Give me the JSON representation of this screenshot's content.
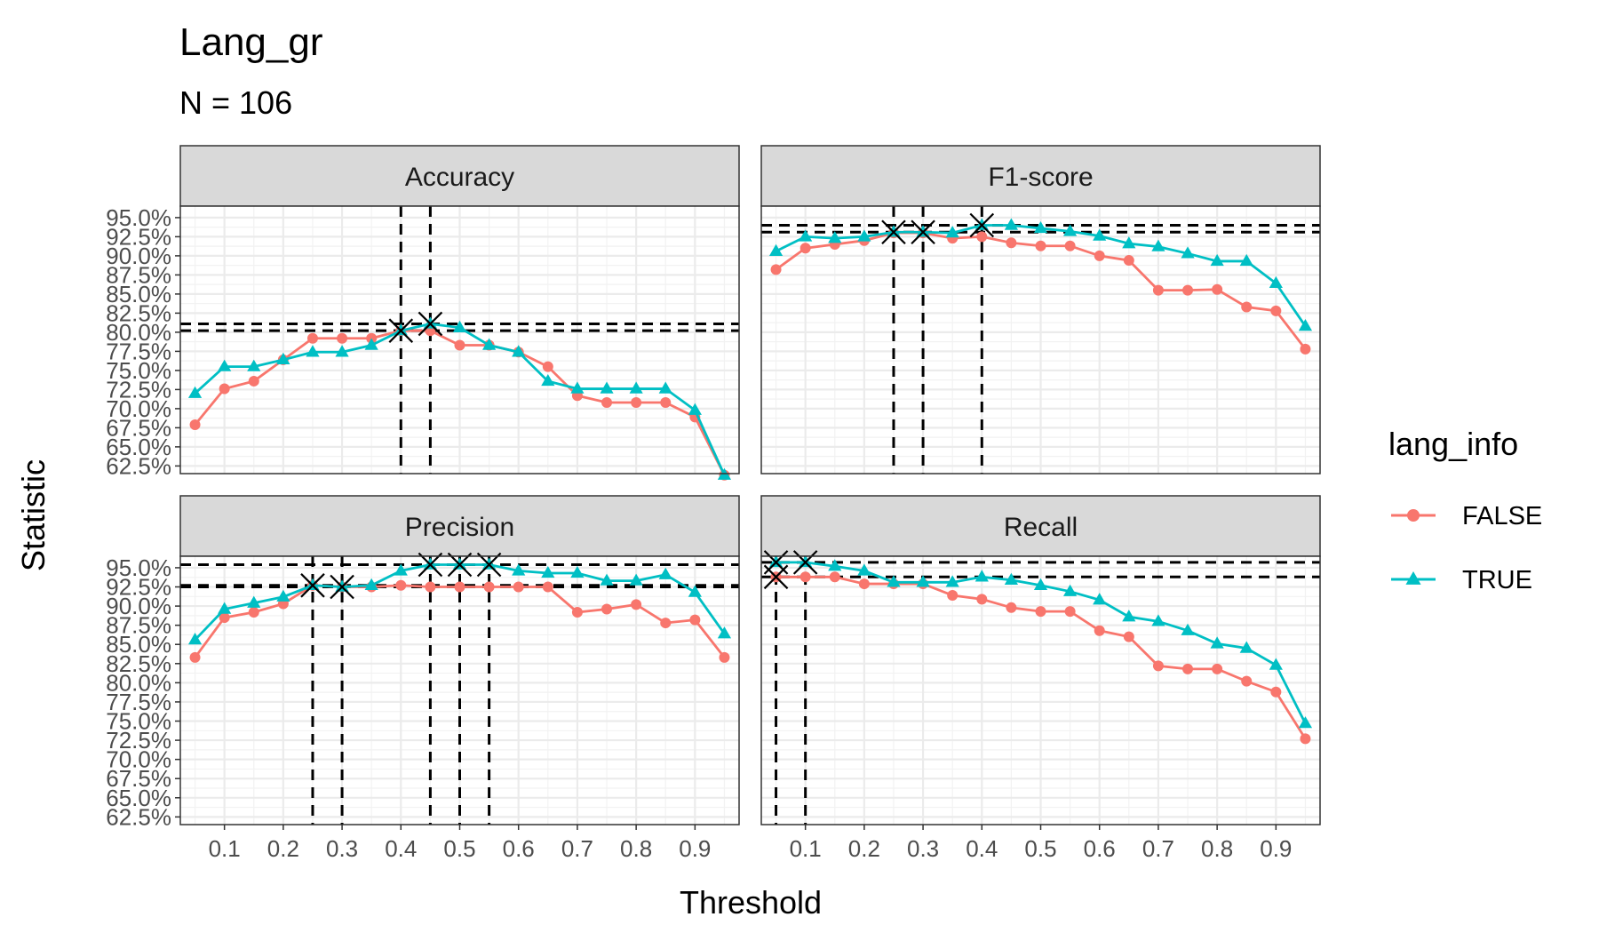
{
  "chart_data": {
    "type": "line",
    "title": "Lang_gr",
    "subtitle": "N = 106",
    "xlabel": "Threshold",
    "ylabel": "Statistic",
    "legend": {
      "title": "lang_info",
      "position": "right",
      "entries": [
        {
          "name": "FALSE",
          "color": "#F8766D",
          "shape": "circle"
        },
        {
          "name": "TRUE",
          "color": "#00BFC4",
          "shape": "triangle"
        }
      ]
    },
    "x": [
      0.05,
      0.1,
      0.15,
      0.2,
      0.25,
      0.3,
      0.35,
      0.4,
      0.45,
      0.5,
      0.55,
      0.6,
      0.65,
      0.7,
      0.75,
      0.8,
      0.85,
      0.9,
      0.95
    ],
    "x_ticks": [
      0.1,
      0.2,
      0.3,
      0.4,
      0.5,
      0.6,
      0.7,
      0.8,
      0.9
    ],
    "x_tick_labels": [
      "0.1",
      "0.2",
      "0.3",
      "0.4",
      "0.5",
      "0.6",
      "0.7",
      "0.8",
      "0.9"
    ],
    "xlim": [
      0.025,
      0.975
    ],
    "y_ticks": [
      62.5,
      65,
      67.5,
      70,
      72.5,
      75,
      77.5,
      80,
      82.5,
      85,
      87.5,
      90,
      92.5,
      95
    ],
    "y_tick_labels": [
      "62.5%",
      "65.0%",
      "67.5%",
      "70.0%",
      "72.5%",
      "75.0%",
      "77.5%",
      "80.0%",
      "82.5%",
      "85.0%",
      "87.5%",
      "90.0%",
      "92.5%",
      "95.0%"
    ],
    "grid": true,
    "panels": [
      {
        "name": "Accuracy",
        "ylim": [
          61.5,
          96.5
        ],
        "series": [
          {
            "name": "FALSE",
            "values": [
              67.9,
              72.6,
              73.6,
              76.4,
              79.2,
              79.2,
              79.2,
              80.2,
              80.2,
              78.3,
              78.3,
              77.4,
              75.5,
              71.7,
              70.8,
              70.8,
              70.8,
              68.9,
              61.3
            ]
          },
          {
            "name": "TRUE",
            "values": [
              72.0,
              75.5,
              75.5,
              76.4,
              77.4,
              77.4,
              78.3,
              80.2,
              81.1,
              80.6,
              78.3,
              77.4,
              73.6,
              72.6,
              72.6,
              72.6,
              72.6,
              69.8,
              61.3
            ]
          }
        ],
        "optimal": [
          {
            "x": 0.4,
            "y": 80.2
          },
          {
            "x": 0.45,
            "y": 81.1
          }
        ]
      },
      {
        "name": "F1-score",
        "ylim": [
          61.5,
          96.5
        ],
        "series": [
          {
            "name": "FALSE",
            "values": [
              88.2,
              91.0,
              91.5,
              92.0,
              93.0,
              93.0,
              92.3,
              92.5,
              91.7,
              91.3,
              91.3,
              90.0,
              89.4,
              85.5,
              85.5,
              85.6,
              83.3,
              82.8,
              77.8
            ]
          },
          {
            "name": "TRUE",
            "values": [
              90.6,
              92.5,
              92.3,
              92.5,
              93.1,
              93.1,
              93.0,
              94.0,
              94.0,
              93.6,
              93.2,
              92.6,
              91.6,
              91.2,
              90.3,
              89.3,
              89.3,
              86.4,
              80.8
            ]
          }
        ],
        "optimal": [
          {
            "x": 0.25,
            "y": 93.1
          },
          {
            "x": 0.3,
            "y": 93.1
          },
          {
            "x": 0.4,
            "y": 94.0
          }
        ]
      },
      {
        "name": "Precision",
        "ylim": [
          61.5,
          96.5
        ],
        "series": [
          {
            "name": "FALSE",
            "values": [
              83.3,
              88.5,
              89.2,
              90.3,
              92.7,
              92.5,
              92.5,
              92.7,
              92.5,
              92.5,
              92.5,
              92.5,
              92.5,
              89.2,
              89.6,
              90.2,
              87.8,
              88.2,
              83.3
            ]
          },
          {
            "name": "TRUE",
            "values": [
              85.6,
              89.6,
              90.4,
              91.2,
              92.7,
              92.5,
              92.7,
              94.6,
              95.4,
              95.4,
              95.4,
              94.6,
              94.3,
              94.3,
              93.3,
              93.3,
              94.1,
              91.8,
              86.4
            ]
          }
        ],
        "optimal": [
          {
            "x": 0.25,
            "y": 92.7
          },
          {
            "x": 0.3,
            "y": 92.5
          },
          {
            "x": 0.45,
            "y": 95.4
          },
          {
            "x": 0.5,
            "y": 95.4
          },
          {
            "x": 0.55,
            "y": 95.4
          }
        ]
      },
      {
        "name": "Recall",
        "ylim": [
          61.5,
          96.5
        ],
        "series": [
          {
            "name": "FALSE",
            "values": [
              93.8,
              93.8,
              93.8,
              92.9,
              92.9,
              92.9,
              91.4,
              90.9,
              89.8,
              89.3,
              89.3,
              86.8,
              86.0,
              82.2,
              81.8,
              81.8,
              80.2,
              78.8,
              72.7
            ]
          },
          {
            "name": "TRUE",
            "values": [
              95.7,
              95.7,
              95.2,
              94.6,
              93.1,
              93.1,
              93.1,
              93.8,
              93.4,
              92.7,
              91.9,
              90.8,
              88.6,
              88.0,
              86.8,
              85.1,
              84.5,
              82.3,
              74.7
            ]
          }
        ],
        "optimal": [
          {
            "x": 0.05,
            "y": 95.7
          },
          {
            "x": 0.05,
            "y": 93.8
          },
          {
            "x": 0.1,
            "y": 95.7
          }
        ]
      }
    ]
  }
}
